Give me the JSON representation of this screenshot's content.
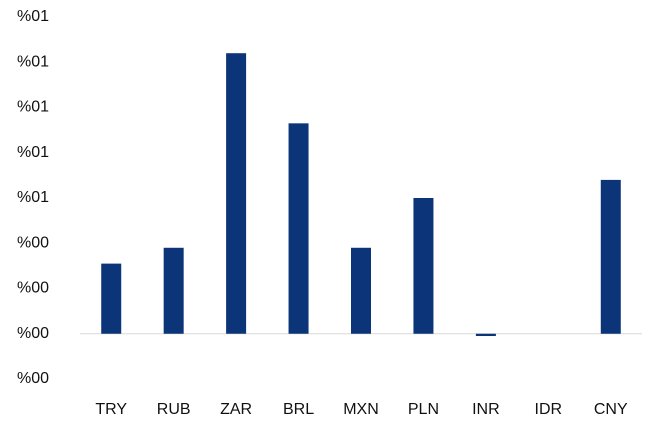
{
  "chart_data": {
    "type": "bar",
    "categories": [
      "TRY",
      "RUB",
      "ZAR",
      "BRL",
      "MXN",
      "PLN",
      "INR",
      "IDR",
      "CNY"
    ],
    "values": [
      0.31,
      0.38,
      1.24,
      0.93,
      0.38,
      0.6,
      -0.01,
      0,
      0.68
    ],
    "color": "#0b3578",
    "ylim": [
      -0.2,
      1.4
    ],
    "yticks": [
      {
        "value": -0.2,
        "label": "%00"
      },
      {
        "value": 0,
        "label": "%00"
      },
      {
        "value": 0.2,
        "label": "%00"
      },
      {
        "value": 0.4,
        "label": "%00"
      },
      {
        "value": 0.6,
        "label": "%01"
      },
      {
        "value": 0.8,
        "label": "%01"
      },
      {
        "value": 1.0,
        "label": "%01"
      },
      {
        "value": 1.2,
        "label": "%01"
      },
      {
        "value": 1.4,
        "label": "%01"
      }
    ],
    "grid": false
  }
}
